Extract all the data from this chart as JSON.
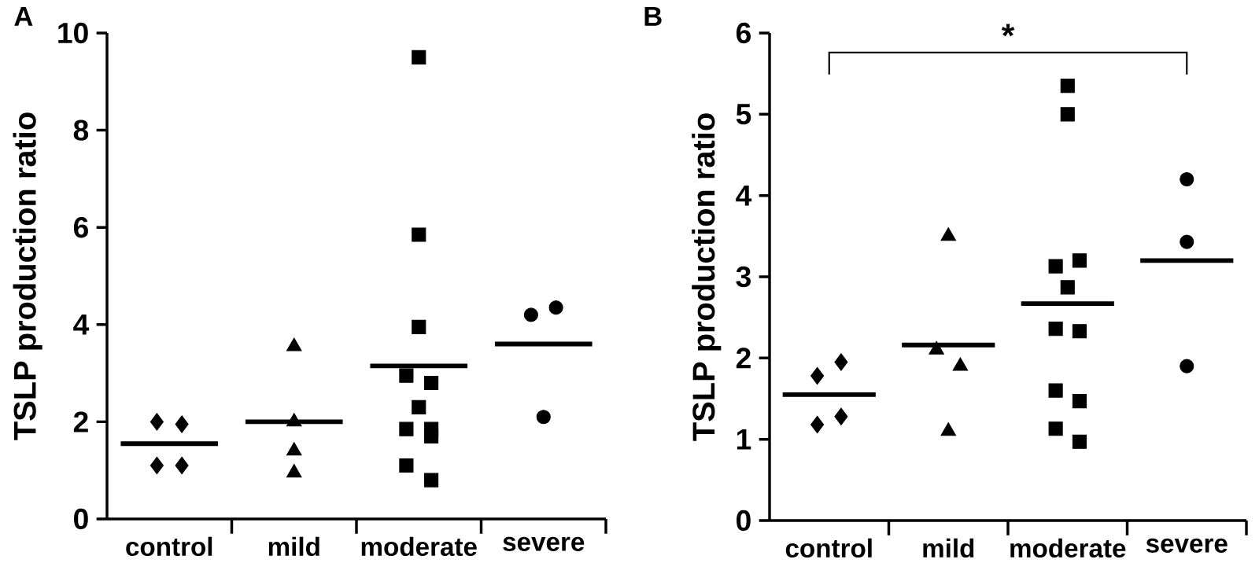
{
  "chart_data": [
    {
      "type": "scatter",
      "title": "A",
      "ylabel": "TSLP production ratio",
      "categories": [
        "control",
        "mild",
        "moderate",
        "severe"
      ],
      "ylim": [
        0,
        10
      ],
      "yticks": [
        0,
        2,
        4,
        6,
        8,
        10
      ],
      "series": [
        {
          "marker": "diamond",
          "color": "#000000",
          "x": [
            "control",
            "control",
            "control",
            "control"
          ],
          "values": [
            1.1,
            1.1,
            1.95,
            2.0
          ]
        },
        {
          "marker": "triangle",
          "color": "#000000",
          "x": [
            "mild",
            "mild",
            "mild",
            "mild"
          ],
          "values": [
            3.55,
            2.0,
            1.4,
            0.95
          ]
        },
        {
          "marker": "square",
          "color": "#000000",
          "x": [
            "moderate",
            "moderate",
            "moderate",
            "moderate",
            "moderate",
            "moderate",
            "moderate",
            "moderate",
            "moderate",
            "moderate",
            "moderate"
          ],
          "values": [
            9.5,
            5.85,
            3.95,
            2.95,
            2.8,
            2.3,
            1.85,
            1.85,
            1.7,
            1.1,
            0.8
          ]
        },
        {
          "marker": "circle",
          "color": "#000000",
          "x": [
            "severe",
            "severe",
            "severe"
          ],
          "values": [
            4.35,
            4.2,
            2.1
          ]
        },
        {
          "type": "bar",
          "color": "#000000",
          "x": [
            "control",
            "mild",
            "moderate",
            "severe"
          ],
          "base": [
            1.55,
            2.0,
            3.15,
            3.6
          ],
          "values": [
            0,
            0,
            0,
            0
          ]
        }
      ]
    },
    {
      "type": "scatter",
      "title": "B",
      "ylabel": "TSLP production ratio",
      "categories": [
        "control",
        "mild",
        "moderate",
        "severe"
      ],
      "ylim": [
        0,
        6
      ],
      "yticks": [
        0,
        1,
        2,
        3,
        4,
        5,
        6
      ],
      "annotations": [
        "*"
      ],
      "series": [
        {
          "marker": "diamond",
          "color": "#000000",
          "x": [
            "control",
            "control",
            "control",
            "control"
          ],
          "values": [
            1.95,
            1.78,
            1.28,
            1.18
          ]
        },
        {
          "marker": "triangle",
          "color": "#000000",
          "x": [
            "mild",
            "mild",
            "mild",
            "mild"
          ],
          "values": [
            3.5,
            2.1,
            1.9,
            1.1
          ]
        },
        {
          "marker": "square",
          "color": "#000000",
          "x": [
            "moderate",
            "moderate",
            "moderate",
            "moderate",
            "moderate",
            "moderate",
            "moderate",
            "moderate",
            "moderate",
            "moderate",
            "moderate"
          ],
          "values": [
            5.35,
            5.0,
            3.2,
            3.13,
            2.87,
            2.36,
            2.33,
            1.6,
            1.47,
            1.13,
            0.97
          ]
        },
        {
          "marker": "circle",
          "color": "#000000",
          "x": [
            "severe",
            "severe",
            "severe"
          ],
          "values": [
            4.2,
            3.43,
            1.9
          ]
        },
        {
          "type": "bar",
          "color": "#000000",
          "x": [
            "control",
            "mild",
            "moderate",
            "severe"
          ],
          "base": [
            1.55,
            2.16,
            2.67,
            3.2
          ],
          "values": [
            0,
            0,
            0,
            0
          ]
        }
      ]
    }
  ]
}
